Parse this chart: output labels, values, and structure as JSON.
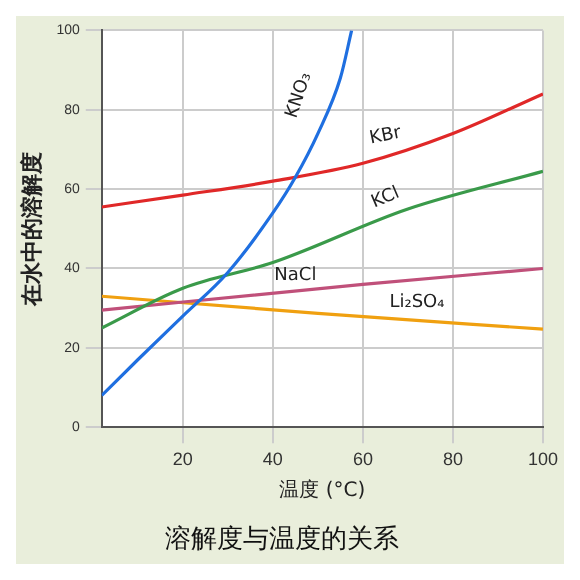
{
  "chart_data": {
    "type": "line",
    "title": "溶解度与温度的关系",
    "xlabel": "温度 (°C)",
    "ylabel": "在水中的溶解度",
    "xlim": [
      2,
      100
    ],
    "xticks": [
      20,
      40,
      60,
      80,
      100
    ],
    "ylim": [
      0,
      100
    ],
    "yticks": [
      0,
      20,
      40,
      60,
      80,
      100
    ],
    "grid": true,
    "legend": false,
    "marker": "none",
    "series": [
      {
        "name": "KNO₃",
        "color": "#1f6fe0",
        "x": [
          2,
          10,
          20,
          30,
          40,
          45,
          50,
          55,
          57.5
        ],
        "values": [
          8,
          17,
          28,
          39,
          54,
          63,
          74,
          88,
          100
        ]
      },
      {
        "name": "KBr",
        "color": "#e02828",
        "x": [
          2,
          20,
          40,
          60,
          80,
          100
        ],
        "values": [
          55.5,
          58.5,
          62,
          66.5,
          74,
          84
        ]
      },
      {
        "name": "KCl",
        "color": "#3a9a4a",
        "x": [
          2,
          20,
          40,
          70,
          100
        ],
        "values": [
          25,
          35,
          41.5,
          55,
          64.5
        ]
      },
      {
        "name": "NaCl",
        "color": "#c0507a",
        "x": [
          2,
          60,
          100
        ],
        "values": [
          29.5,
          36,
          40
        ]
      },
      {
        "name": "Li₂SO₄",
        "color": "#f0a010",
        "x": [
          2,
          50,
          100
        ],
        "values": [
          33,
          28.7,
          24.7
        ]
      }
    ]
  }
}
